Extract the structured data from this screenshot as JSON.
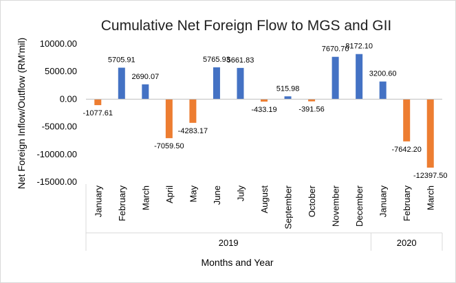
{
  "chart_data": {
    "type": "bar",
    "title": "Cumulative Net Foreign Flow to MGS and GII",
    "xlabel": "Months and Year",
    "ylabel": "Net Foreign Inflow/Outflow (RM'mil)",
    "ylim": [
      -15000,
      10000
    ],
    "yticks": [
      "10000.00",
      "5000.00",
      "0.00",
      "-5000.00",
      "-10000.00",
      "-15000.00"
    ],
    "ytick_values": [
      10000,
      5000,
      0,
      -5000,
      -10000,
      -15000
    ],
    "categories": [
      "January",
      "February",
      "March",
      "April",
      "May",
      "June",
      "July",
      "August",
      "September",
      "October",
      "November",
      "December",
      "January",
      "February",
      "March"
    ],
    "years": [
      {
        "label": "2019",
        "count": 12
      },
      {
        "label": "2020",
        "count": 3
      }
    ],
    "values": [
      -1077.61,
      5705.91,
      2690.07,
      -7059.5,
      -4283.17,
      5765.93,
      5661.83,
      -433.19,
      515.98,
      -391.56,
      7670.7,
      8172.1,
      3200.6,
      -7642.2,
      -12397.5
    ],
    "value_labels": [
      "-1077.61",
      "5705.91",
      "2690.07",
      "-7059.50",
      "-4283.17",
      "5765.93",
      "5661.83",
      "-433.19",
      "515.98",
      "-391.56",
      "7670.70",
      "8172.10",
      "3200.60",
      "-7642.20",
      "-12397.50"
    ],
    "colors": {
      "positive": "#4472c4",
      "negative": "#ed7d31"
    },
    "grid": false,
    "legend": "none"
  }
}
